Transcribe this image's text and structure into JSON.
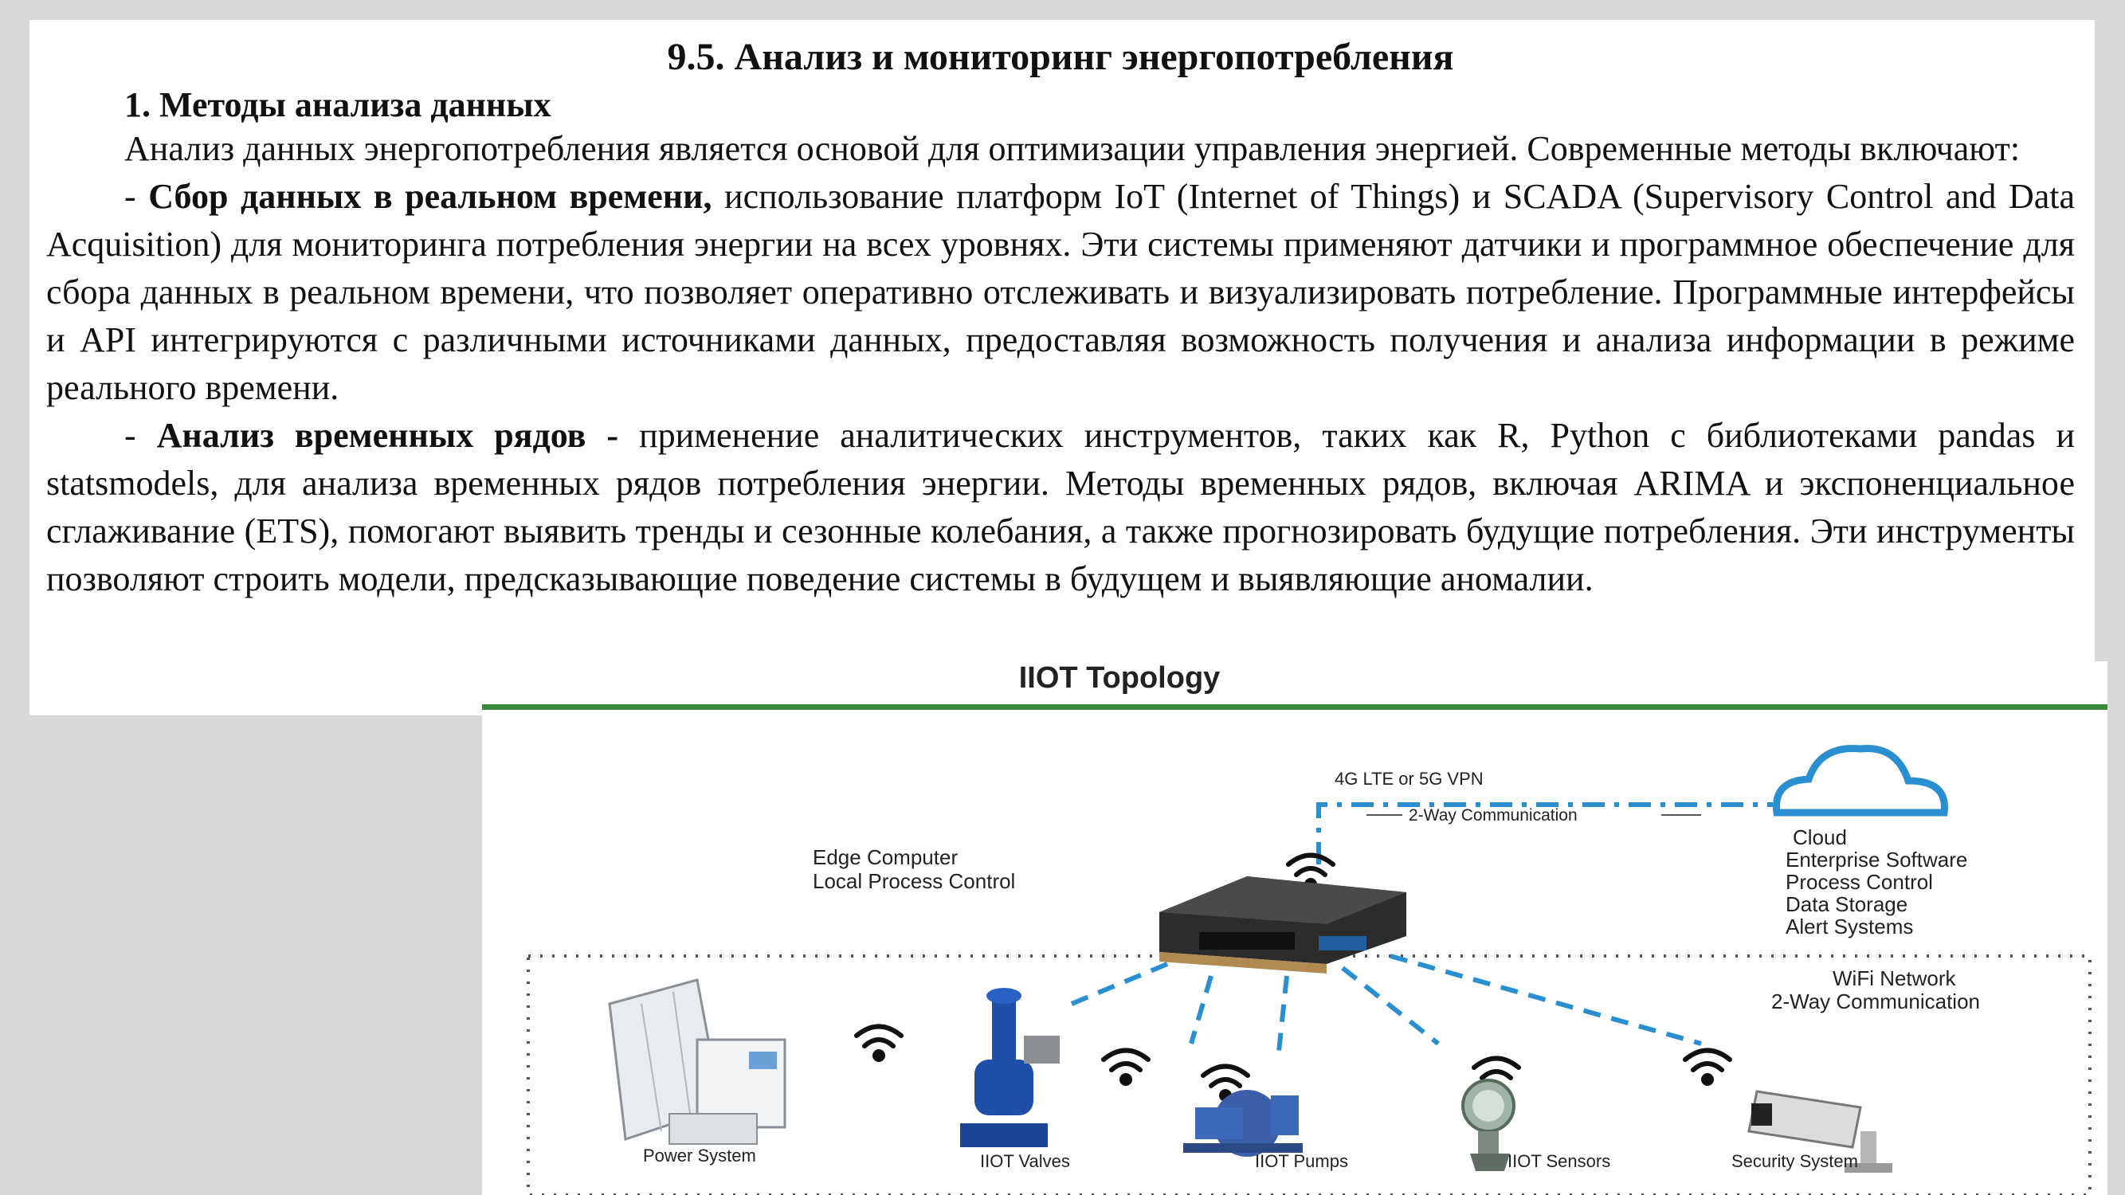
{
  "document": {
    "title": "9.5. Анализ и мониторинг энергопотребления",
    "subsection": "1. Методы анализа данных",
    "intro": "Анализ данных энергопотребления является основой для оптимизации управления энергией. Современные методы включают:",
    "item1": {
      "prefix": "- ",
      "bold": "Сбор данных в реальном времени,",
      "text": " использование платформ IoT (Internet of Things) и SCADA (Supervisory Control and Data Acquisition) для мониторинга потребления энергии на всех уровнях. Эти системы применяют датчики и программное обеспечение для сбора данных в реальном времени, что позволяет оперативно отслеживать и визуализировать потребление. Программные интерфейсы и API интегрируются с различными источниками данных, предоставляя возможность получения и анализа информации в режиме реального времени."
    },
    "item2": {
      "prefix": "- ",
      "bold": "Анализ временных рядов -",
      "text": " применение аналитических инструментов, таких как R, Python с библиотеками pandas и statsmodels, для анализа временных рядов потребления энергии. Методы временных рядов, включая ARIMA и экспоненциальное сглаживание (ETS), помогают выявить тренды и сезонные колебания, а также прогнозировать будущие потребления. Эти инструменты позволяют строить модели, предсказывающие поведение системы в будущем и выявляющие аномалии."
    }
  },
  "figure": {
    "title": "IIOT Topology",
    "link_label": "4G LTE or 5G VPN",
    "link_comm": "2-Way Communication",
    "edge_label_1": "Edge Computer",
    "edge_label_2": "Local Process Control",
    "cloud_lines": [
      "Cloud",
      "Enterprise Software",
      "Process Control",
      "Data Storage",
      "Alert Systems"
    ],
    "wifi_lines": [
      "WiFi Network",
      "2-Way Communication"
    ],
    "devices": [
      "Power System",
      "IIOT Valves",
      "IIOT Pumps",
      "IIOT Sensors",
      "Security System"
    ],
    "colors": {
      "accent_green": "#3a8a3a",
      "link_blue": "#2a8fd0"
    }
  }
}
